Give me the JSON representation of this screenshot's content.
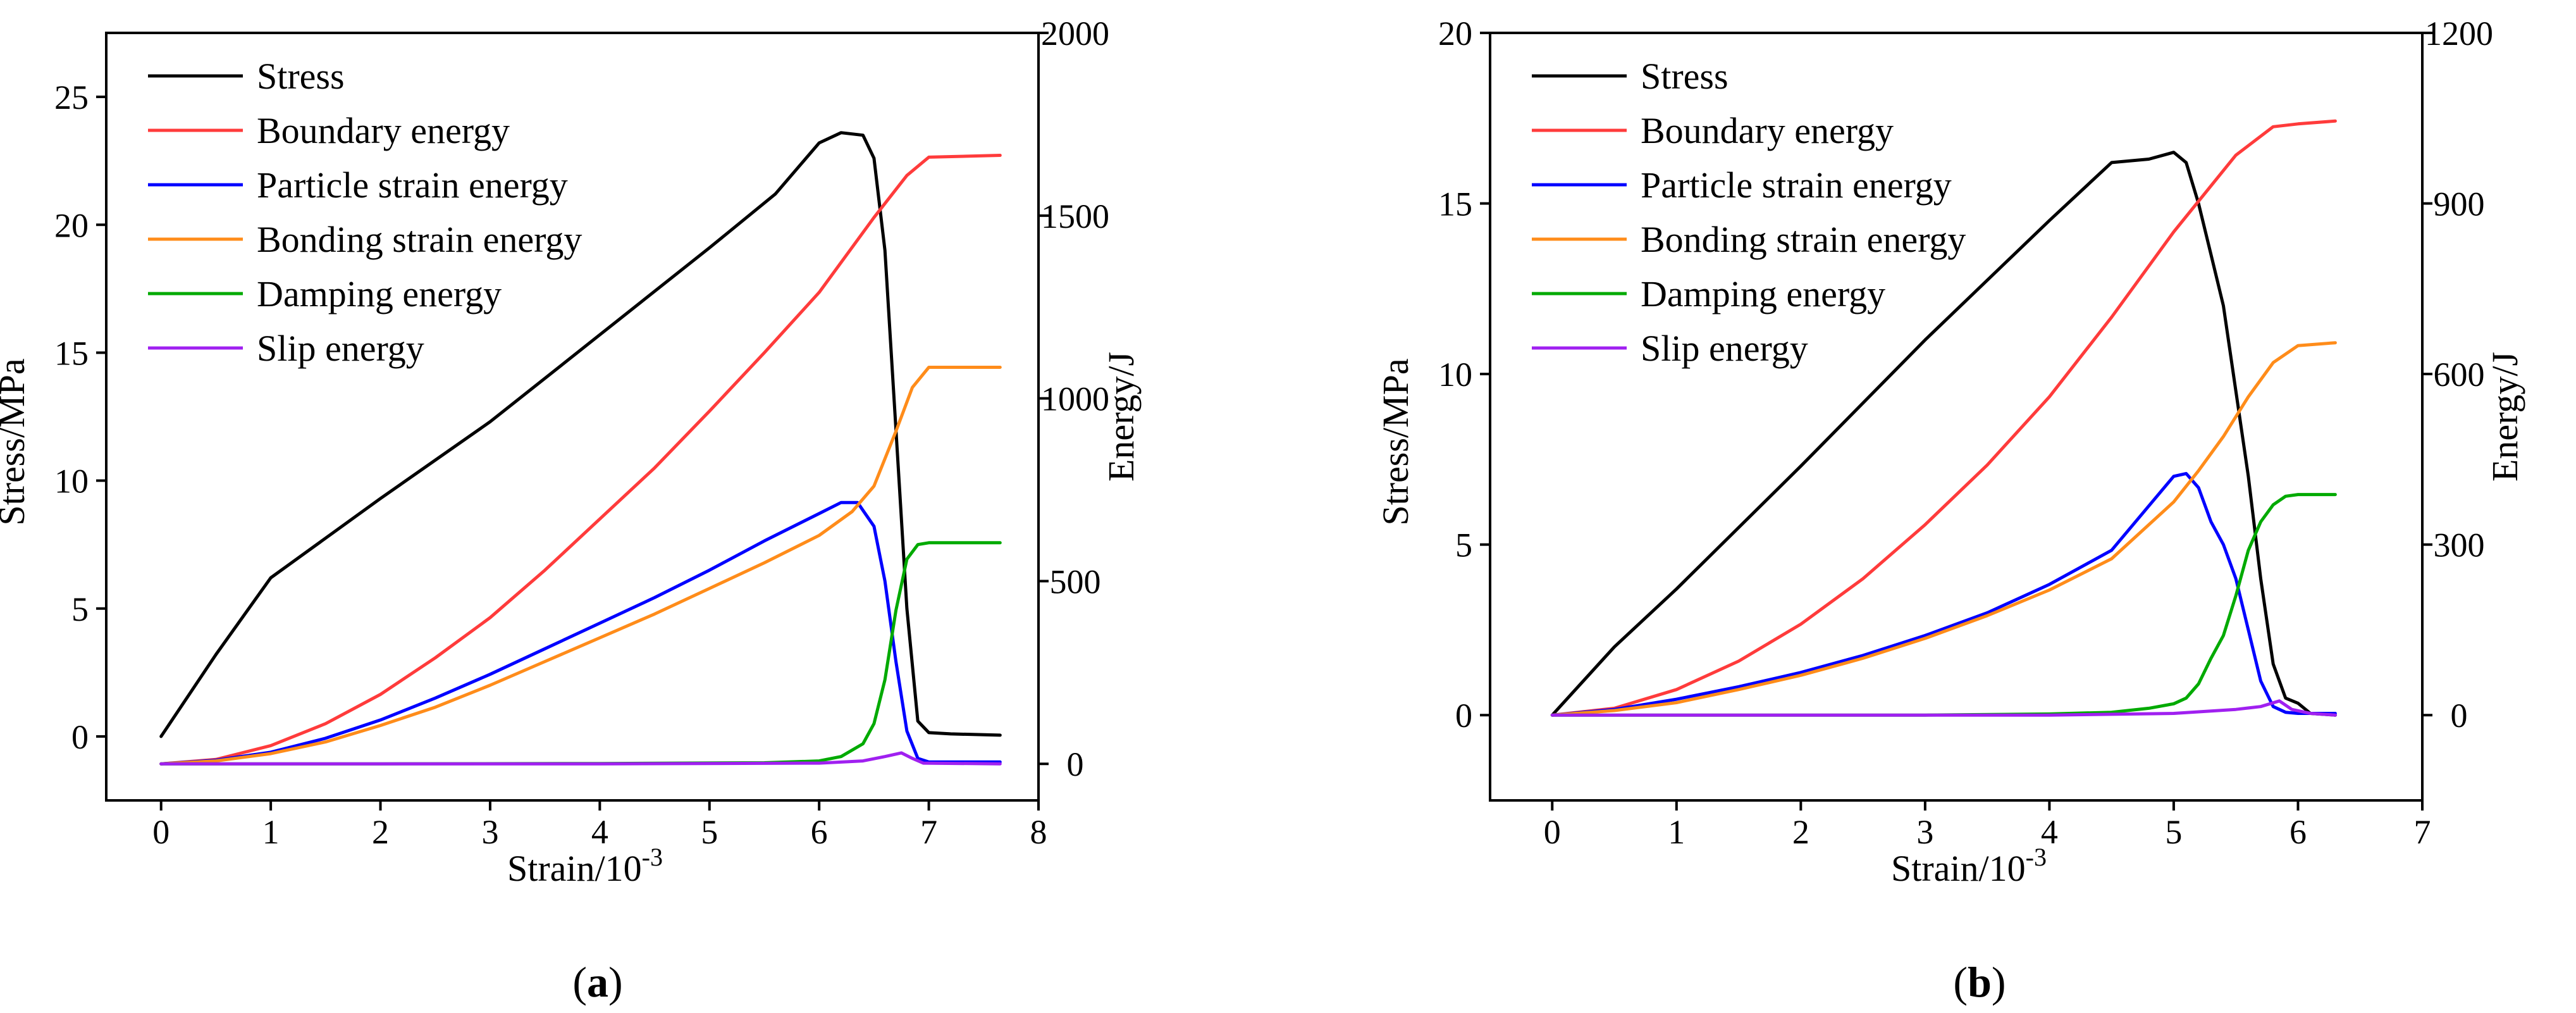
{
  "figure_labels": [
    "a",
    "b"
  ],
  "chart_data": [
    {
      "type": "line",
      "panel": "a",
      "xlabel": "Strain/10",
      "xlabel_exp": "-3",
      "ylabel_left": "Stress/MPa",
      "ylabel_right": "Energy/J",
      "xlim": [
        -0.5,
        8
      ],
      "ylim_left": [
        -2.5,
        27.5
      ],
      "ylim_right": [
        -100,
        2000
      ],
      "xticks": [
        0,
        1,
        2,
        3,
        4,
        5,
        6,
        7,
        8
      ],
      "yticks_left": [
        0,
        5,
        10,
        15,
        20,
        25
      ],
      "yticks_right": [
        0,
        500,
        1000,
        1500,
        2000
      ],
      "legend_position": "top-left",
      "series": [
        {
          "name": "Stress",
          "axis": "left",
          "color": "#000000",
          "x": [
            0,
            0.5,
            1,
            2,
            3,
            4,
            5,
            5.6,
            6.0,
            6.2,
            6.4,
            6.5,
            6.6,
            6.7,
            6.8,
            6.9,
            7.0,
            7.2,
            7.65
          ],
          "y": [
            0,
            3.2,
            6.2,
            9.3,
            12.3,
            15.7,
            19.1,
            21.2,
            23.2,
            23.6,
            23.5,
            22.6,
            19.0,
            12.0,
            5.0,
            0.6,
            0.15,
            0.1,
            0.05
          ]
        },
        {
          "name": "Boundary energy",
          "axis": "right",
          "color": "#FF3B3B",
          "x": [
            0,
            0.5,
            1,
            1.5,
            2,
            2.5,
            3,
            3.5,
            4,
            4.5,
            5,
            5.5,
            6,
            6.5,
            6.8,
            7.0,
            7.65
          ],
          "y": [
            0,
            12,
            50,
            110,
            190,
            290,
            400,
            530,
            670,
            810,
            965,
            1125,
            1290,
            1495,
            1610,
            1660,
            1665
          ]
        },
        {
          "name": "Particle strain energy",
          "axis": "right",
          "color": "#0000FF",
          "x": [
            0,
            0.5,
            1,
            1.5,
            2,
            2.5,
            3,
            3.5,
            4,
            4.5,
            5,
            5.5,
            6,
            6.2,
            6.35,
            6.5,
            6.6,
            6.7,
            6.8,
            6.9,
            7.0,
            7.65
          ],
          "y": [
            0,
            10,
            32,
            70,
            120,
            180,
            245,
            315,
            385,
            455,
            530,
            610,
            685,
            715,
            715,
            650,
            500,
            280,
            90,
            15,
            5,
            5
          ]
        },
        {
          "name": "Bonding strain energy",
          "axis": "right",
          "color": "#FF8C1A",
          "x": [
            0,
            0.5,
            1,
            1.5,
            2,
            2.5,
            3,
            3.5,
            4,
            4.5,
            5,
            5.5,
            6,
            6.3,
            6.5,
            6.7,
            6.85,
            7.0,
            7.65
          ],
          "y": [
            0,
            8,
            28,
            60,
            105,
            155,
            215,
            280,
            345,
            410,
            480,
            550,
            625,
            690,
            760,
            910,
            1030,
            1085,
            1085
          ]
        },
        {
          "name": "Damping energy",
          "axis": "right",
          "color": "#00AA00",
          "x": [
            0,
            2,
            4,
            5.5,
            6.0,
            6.2,
            6.4,
            6.5,
            6.6,
            6.7,
            6.8,
            6.9,
            7.0,
            7.65
          ],
          "y": [
            0,
            0,
            1,
            3,
            8,
            20,
            55,
            110,
            230,
            420,
            560,
            600,
            605,
            605
          ]
        },
        {
          "name": "Slip energy",
          "axis": "right",
          "color": "#A020F0",
          "x": [
            0,
            4,
            6,
            6.4,
            6.6,
            6.75,
            6.85,
            6.95,
            7.65
          ],
          "y": [
            0,
            0,
            2,
            8,
            20,
            30,
            15,
            2,
            0
          ]
        }
      ]
    },
    {
      "type": "line",
      "panel": "b",
      "xlabel": "Strain/10",
      "xlabel_exp": "-3",
      "ylabel_left": "Stress/MPa",
      "ylabel_right": "Energy/J",
      "xlim": [
        -0.5,
        7
      ],
      "ylim_left": [
        -2.5,
        20
      ],
      "ylim_right": [
        -150,
        1200
      ],
      "xticks": [
        0,
        1,
        2,
        3,
        4,
        5,
        6,
        7
      ],
      "yticks_left": [
        0,
        5,
        10,
        15,
        20
      ],
      "yticks_right": [
        0,
        300,
        600,
        900,
        1200
      ],
      "legend_position": "top-left",
      "series": [
        {
          "name": "Stress",
          "axis": "left",
          "color": "#000000",
          "x": [
            0,
            0.5,
            1,
            2,
            3,
            4,
            4.5,
            4.8,
            5.0,
            5.1,
            5.2,
            5.3,
            5.4,
            5.5,
            5.6,
            5.7,
            5.8,
            5.9,
            6.0,
            6.1,
            6.3
          ],
          "y": [
            0,
            2.0,
            3.7,
            7.3,
            11.0,
            14.5,
            16.2,
            16.3,
            16.5,
            16.2,
            15.0,
            13.5,
            12.0,
            9.5,
            7.0,
            4.0,
            1.5,
            0.5,
            0.35,
            0.05,
            0.0
          ]
        },
        {
          "name": "Boundary energy",
          "axis": "right",
          "color": "#FF3B3B",
          "x": [
            0,
            0.5,
            1,
            1.5,
            2,
            2.5,
            3,
            3.5,
            4,
            4.5,
            5,
            5.5,
            5.8,
            6.0,
            6.3
          ],
          "y": [
            0,
            12,
            45,
            95,
            160,
            240,
            335,
            440,
            560,
            700,
            850,
            985,
            1035,
            1040,
            1045
          ]
        },
        {
          "name": "Particle strain energy",
          "axis": "right",
          "color": "#0000FF",
          "x": [
            0,
            0.5,
            1,
            1.5,
            2,
            2.5,
            3,
            3.5,
            4,
            4.5,
            5,
            5.1,
            5.2,
            5.3,
            5.4,
            5.5,
            5.6,
            5.7,
            5.8,
            5.9,
            6.0,
            6.3
          ],
          "y": [
            0,
            10,
            28,
            50,
            75,
            105,
            140,
            180,
            230,
            290,
            420,
            425,
            400,
            340,
            300,
            240,
            150,
            60,
            15,
            5,
            3,
            3
          ]
        },
        {
          "name": "Bonding strain energy",
          "axis": "right",
          "color": "#FF8C1A",
          "x": [
            0,
            0.5,
            1,
            1.5,
            2,
            2.5,
            3,
            3.5,
            4,
            4.5,
            5,
            5.2,
            5.4,
            5.6,
            5.8,
            6.0,
            6.3
          ],
          "y": [
            0,
            8,
            22,
            45,
            70,
            100,
            135,
            175,
            220,
            275,
            375,
            430,
            490,
            560,
            620,
            650,
            655
          ]
        },
        {
          "name": "Damping energy",
          "axis": "right",
          "color": "#00AA00",
          "x": [
            0,
            3,
            4,
            4.5,
            4.8,
            5.0,
            5.1,
            5.2,
            5.3,
            5.4,
            5.5,
            5.6,
            5.7,
            5.8,
            5.9,
            6.0,
            6.3
          ],
          "y": [
            0,
            0,
            2,
            5,
            12,
            20,
            30,
            55,
            100,
            140,
            210,
            290,
            340,
            370,
            385,
            388,
            388
          ]
        },
        {
          "name": "Slip energy",
          "axis": "right",
          "color": "#A020F0",
          "x": [
            0,
            4,
            5,
            5.5,
            5.7,
            5.85,
            5.95,
            6.1,
            6.3
          ],
          "y": [
            0,
            0,
            3,
            10,
            15,
            25,
            10,
            3,
            0
          ]
        }
      ]
    }
  ]
}
